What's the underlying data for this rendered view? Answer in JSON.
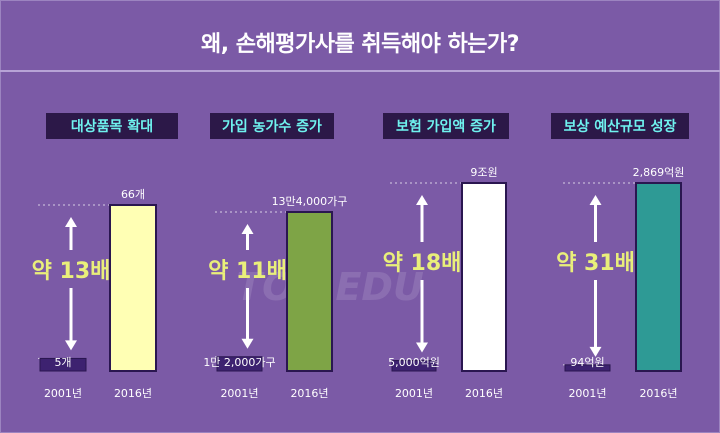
{
  "title": "왜, 손해평가사를 취득해야 하는가?",
  "watermark": "TOP EDU",
  "colors": {
    "background": "#7b5aa6",
    "heading_bg": "#2c1848",
    "heading_text": "#6ff2ef",
    "multiplier_text": "#e9ef7a",
    "bar_2001": "#3d2270",
    "guide": "#ffffff"
  },
  "chart_data": [
    {
      "type": "bar",
      "title": "대상품목 확대",
      "categories": [
        "2001년",
        "2016년"
      ],
      "values": [
        5,
        66
      ],
      "value_labels": [
        "5개",
        "66개"
      ],
      "multiplier": "약 13배",
      "bar_color_2016": "#ffffb4"
    },
    {
      "type": "bar",
      "title": "가입 농가수 증가",
      "categories": [
        "2001년",
        "2016년"
      ],
      "values": [
        12000,
        134000
      ],
      "value_labels": [
        "1만 2,000가구",
        "13만4,000가구"
      ],
      "multiplier": "약 11배",
      "bar_color_2016": "#7ea446"
    },
    {
      "type": "bar",
      "title": "보험 가입액 증가",
      "categories": [
        "2001년",
        "2016년"
      ],
      "values": [
        5000,
        90000
      ],
      "value_labels": [
        "5,000억원",
        "9조원"
      ],
      "multiplier": "약 18배",
      "bar_color_2016": "#ffffff"
    },
    {
      "type": "bar",
      "title": "보상 예산규모 성장",
      "categories": [
        "2001년",
        "2016년"
      ],
      "values": [
        94,
        2869
      ],
      "value_labels": [
        "94억원",
        "2,869억원"
      ],
      "multiplier": "약 31배",
      "bar_color_2016": "#2e9a95"
    }
  ]
}
